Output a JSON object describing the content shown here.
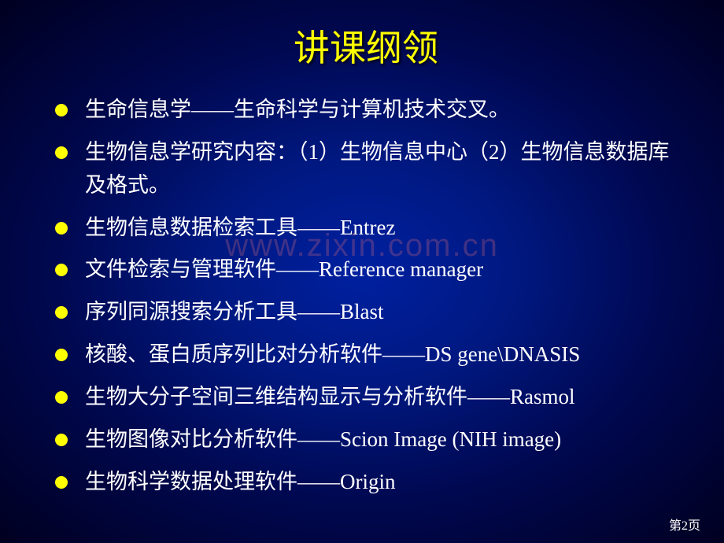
{
  "title": "讲课纲领",
  "title_color": "#ffff00",
  "title_fontsize": 46,
  "text_color": "#ffffff",
  "bullet_color": "#ffff00",
  "bullet_fontsize": 27,
  "background_gradient": {
    "center": "#0020a0",
    "mid": "#000850",
    "edge": "#000020"
  },
  "watermark": "www.zixin.com.cn",
  "watermark_color": "rgba(255,120,120,0.25)",
  "page_number": "第2页",
  "items": [
    "生命信息学——生命科学与计算机技术交叉。",
    "生物信息学研究内容：（1）生物信息中心（2）生物信息数据库及格式。",
    "生物信息数据检索工具——Entrez",
    "文件检索与管理软件——Reference manager",
    "序列同源搜索分析工具——Blast",
    "核酸、蛋白质序列比对分析软件——DS gene\\DNASIS",
    "生物大分子空间三维结构显示与分析软件——Rasmol",
    "生物图像对比分析软件——Scion Image (NIH image)",
    "生物科学数据处理软件——Origin"
  ]
}
